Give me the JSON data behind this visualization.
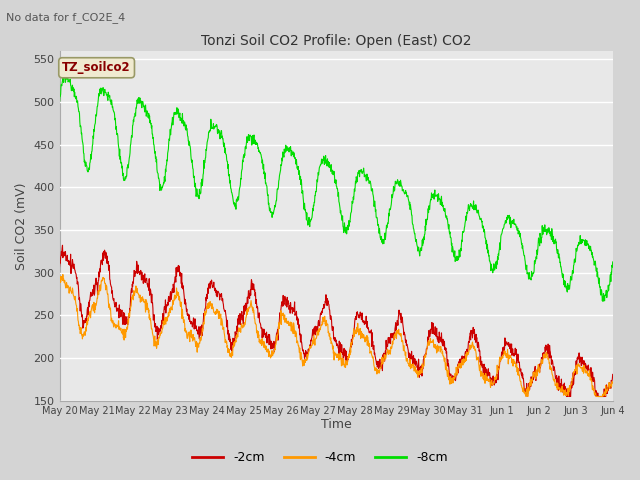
{
  "title": "Tonzi Soil CO2 Profile: Open (East) CO2",
  "subtitle": "No data for f_CO2E_4",
  "ylabel": "Soil CO2 (mV)",
  "xlabel": "Time",
  "legend_label": "TZ_soilco2",
  "ylim": [
    150,
    560
  ],
  "yticks": [
    150,
    200,
    250,
    300,
    350,
    400,
    450,
    500,
    550
  ],
  "series_labels": [
    "-2cm",
    "-4cm",
    "-8cm"
  ],
  "series_colors": [
    "#cc0000",
    "#ff9900",
    "#00dd00"
  ],
  "bg_color": "#e8e8e8",
  "plot_bg_color": "#e8e8e8",
  "n_points": 1500,
  "x_tick_labels": [
    "May 20",
    "May 21",
    "May 22",
    "May 23",
    "May 24",
    "May 25",
    "May 26",
    "May 27",
    "May 28",
    "May 29",
    "May 30",
    "May 31",
    "Jun 1",
    "Jun 2",
    "Jun 3",
    "Jun 4"
  ]
}
